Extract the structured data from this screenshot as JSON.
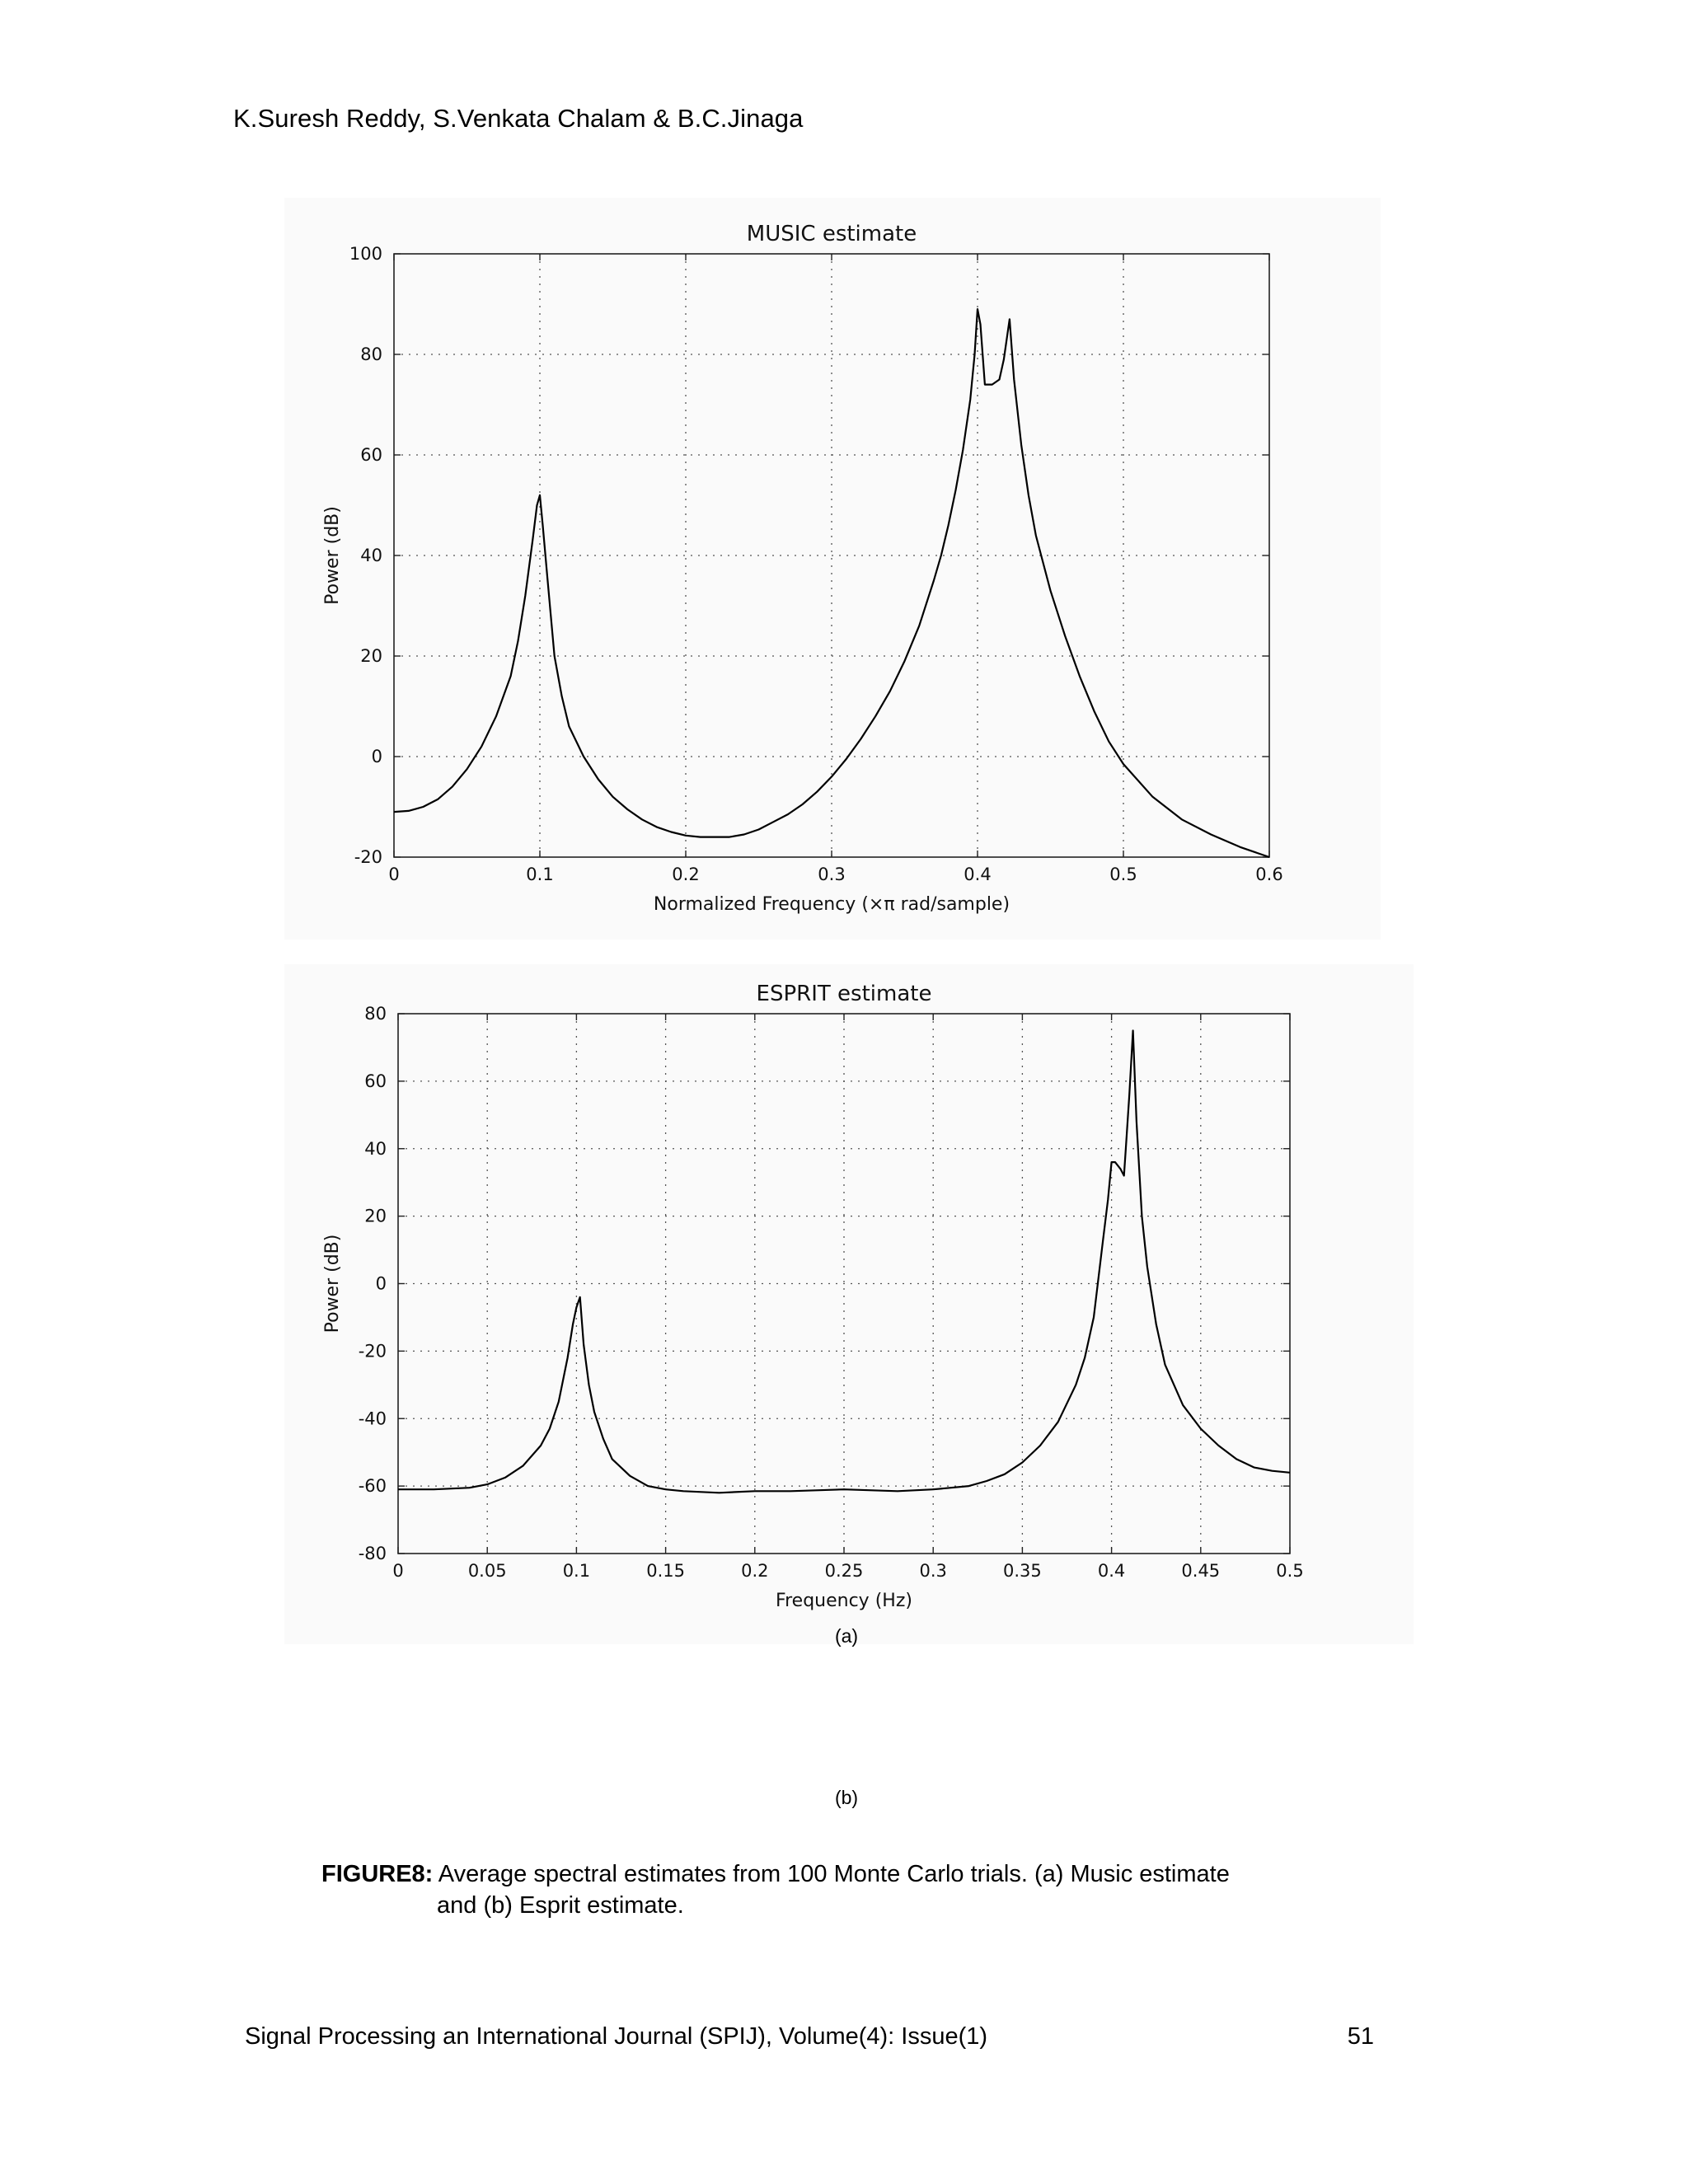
{
  "header": {
    "authors": "K.Suresh Reddy, S.Venkata Chalam & B.C.Jinaga"
  },
  "chart_data": [
    {
      "type": "line",
      "title": "MUSIC estimate",
      "xlabel": "Normalized Frequency  (×π rad/sample)",
      "ylabel": "Power (dB)",
      "xlim": [
        0,
        0.6
      ],
      "ylim": [
        -20,
        100
      ],
      "xticks": [
        0,
        0.1,
        0.2,
        0.3,
        0.4,
        0.5,
        0.6
      ],
      "xtick_labels": [
        "0",
        "0.1",
        "0.2",
        "0.3",
        "0.4",
        "0.5",
        "0.6"
      ],
      "yticks": [
        -20,
        0,
        20,
        40,
        60,
        80,
        100
      ],
      "ytick_labels": [
        "-20",
        "0",
        "20",
        "40",
        "60",
        "80",
        "100"
      ],
      "grid": true,
      "series": [
        {
          "x": [
            0,
            0.01,
            0.02,
            0.03,
            0.04,
            0.05,
            0.06,
            0.07,
            0.08,
            0.085,
            0.09,
            0.095,
            0.098,
            0.1,
            0.102,
            0.105,
            0.11,
            0.115,
            0.12,
            0.13,
            0.14,
            0.15,
            0.16,
            0.17,
            0.18,
            0.19,
            0.2,
            0.21,
            0.22,
            0.23,
            0.24,
            0.25,
            0.26,
            0.27,
            0.28,
            0.29,
            0.3,
            0.31,
            0.32,
            0.33,
            0.34,
            0.35,
            0.36,
            0.37,
            0.375,
            0.38,
            0.385,
            0.39,
            0.395,
            0.398,
            0.4,
            0.402,
            0.405,
            0.41,
            0.415,
            0.418,
            0.42,
            0.422,
            0.425,
            0.43,
            0.435,
            0.44,
            0.45,
            0.46,
            0.47,
            0.48,
            0.49,
            0.5,
            0.52,
            0.54,
            0.56,
            0.58,
            0.6
          ],
          "y": [
            -11,
            -10.8,
            -10,
            -8.5,
            -6,
            -2.5,
            2,
            8,
            16,
            23,
            32,
            43,
            50,
            52,
            46,
            36,
            20,
            12,
            6,
            0,
            -4.5,
            -8,
            -10.5,
            -12.5,
            -14,
            -15,
            -15.7,
            -16,
            -16,
            -16,
            -15.5,
            -14.5,
            -13,
            -11.5,
            -9.5,
            -7,
            -4,
            -0.5,
            3.5,
            8,
            13,
            19,
            26,
            35,
            40,
            46,
            53,
            61,
            71,
            80,
            89,
            86,
            74,
            74,
            75,
            79,
            83,
            87,
            75,
            62,
            52,
            44,
            33,
            24,
            16,
            9,
            3,
            -1.5,
            -8,
            -12.5,
            -15.5,
            -18,
            -20
          ]
        }
      ]
    },
    {
      "type": "line",
      "title": "ESPRIT estimate",
      "xlabel": "Frequency (Hz)",
      "ylabel": "Power (dB)",
      "xlim": [
        0,
        0.5
      ],
      "ylim": [
        -80,
        80
      ],
      "xticks": [
        0,
        0.05,
        0.1,
        0.15,
        0.2,
        0.25,
        0.3,
        0.35,
        0.4,
        0.45,
        0.5
      ],
      "xtick_labels": [
        "0",
        "0.05",
        "0.1",
        "0.15",
        "0.2",
        "0.25",
        "0.3",
        "0.35",
        "0.4",
        "0.45",
        "0.5"
      ],
      "yticks": [
        -80,
        -60,
        -40,
        -20,
        0,
        20,
        40,
        60,
        80
      ],
      "ytick_labels": [
        "-80",
        "-60",
        "-40",
        "-20",
        "0",
        "20",
        "40",
        "60",
        "80"
      ],
      "grid": true,
      "series": [
        {
          "x": [
            0,
            0.02,
            0.04,
            0.05,
            0.06,
            0.07,
            0.08,
            0.085,
            0.09,
            0.095,
            0.098,
            0.1,
            0.102,
            0.104,
            0.107,
            0.11,
            0.115,
            0.12,
            0.13,
            0.14,
            0.15,
            0.16,
            0.18,
            0.2,
            0.22,
            0.25,
            0.28,
            0.3,
            0.32,
            0.33,
            0.34,
            0.35,
            0.36,
            0.37,
            0.38,
            0.385,
            0.39,
            0.395,
            0.398,
            0.4,
            0.402,
            0.405,
            0.407,
            0.408,
            0.41,
            0.412,
            0.414,
            0.417,
            0.42,
            0.425,
            0.43,
            0.44,
            0.45,
            0.46,
            0.47,
            0.48,
            0.49,
            0.5
          ],
          "y": [
            -61,
            -61,
            -60.5,
            -59.5,
            -57.5,
            -54,
            -48,
            -43,
            -35,
            -22,
            -12,
            -7,
            -4,
            -18,
            -30,
            -38,
            -46,
            -52,
            -57,
            -60,
            -61,
            -61.5,
            -62,
            -61.5,
            -61.5,
            -61,
            -61.5,
            -61,
            -60,
            -58.5,
            -56.5,
            -53,
            -48,
            -41,
            -30,
            -22,
            -10,
            12,
            25,
            36,
            36,
            34,
            32,
            40,
            56,
            75,
            48,
            20,
            5,
            -12,
            -24,
            -36,
            -43,
            -48,
            -52,
            -54.5,
            -55.5,
            -56
          ]
        }
      ]
    }
  ],
  "labels": {
    "a": "(a)",
    "b": "(b)"
  },
  "caption": {
    "label": "FIGURE8:",
    "text_line1": " Average spectral estimates from 100 Monte Carlo trials. (a)  Music estimate",
    "text_line2": "and    (b) Esprit estimate."
  },
  "footer": {
    "journal": "Signal Processing an International Journal (SPIJ), Volume(4): Issue(1)",
    "page_number": "51"
  }
}
